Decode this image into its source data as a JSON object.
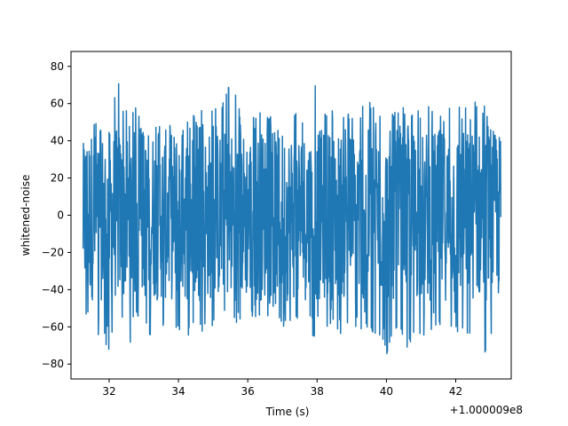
{
  "chart_data": {
    "type": "line",
    "title": "",
    "xlabel": "Time (s)",
    "ylabel": "whitened-noise",
    "x_offset_label": "+1.000009e8",
    "xlim": [
      30.9,
      43.6
    ],
    "ylim": [
      -88,
      88
    ],
    "x_range": [
      31.25,
      43.3
    ],
    "xticks": [
      32,
      34,
      36,
      38,
      40,
      42
    ],
    "yticks": [
      -80,
      -60,
      -40,
      -20,
      0,
      20,
      40,
      60,
      80
    ],
    "grid": false,
    "series": [
      {
        "name": "",
        "color": "#1f77b4",
        "envelope": {
          "x": [
            31.25,
            31.5,
            31.75,
            32.0,
            32.25,
            32.5,
            32.75,
            33.0,
            33.25,
            33.5,
            33.75,
            34.0,
            34.25,
            34.5,
            34.75,
            35.0,
            35.25,
            35.5,
            35.75,
            36.0,
            36.25,
            36.5,
            36.75,
            37.0,
            37.25,
            37.5,
            37.75,
            38.0,
            38.25,
            38.5,
            38.75,
            39.0,
            39.25,
            39.5,
            39.75,
            40.0,
            40.25,
            40.5,
            40.75,
            41.0,
            41.25,
            41.5,
            41.75,
            42.0,
            42.25,
            42.5,
            42.75,
            43.0,
            43.3
          ],
          "max": [
            38,
            54,
            52,
            60,
            78,
            56,
            60,
            52,
            58,
            48,
            56,
            54,
            56,
            54,
            62,
            58,
            60,
            79,
            58,
            62,
            56,
            56,
            52,
            58,
            60,
            66,
            52,
            79,
            56,
            58,
            52,
            64,
            58,
            66,
            58,
            56,
            62,
            58,
            56,
            66,
            60,
            56,
            58,
            62,
            58,
            64,
            66,
            52,
            40
          ],
          "min": [
            -58,
            -62,
            -66,
            -74,
            -62,
            -72,
            -64,
            -62,
            -68,
            -62,
            -60,
            -66,
            -68,
            -62,
            -66,
            -62,
            -64,
            -62,
            -64,
            -62,
            -58,
            -60,
            -58,
            -62,
            -60,
            -62,
            -68,
            -66,
            -62,
            -64,
            -66,
            -62,
            -64,
            -62,
            -68,
            -77,
            -64,
            -76,
            -68,
            -66,
            -62,
            -66,
            -62,
            -64,
            -66,
            -70,
            -80,
            -66,
            -58
          ]
        }
      }
    ]
  }
}
